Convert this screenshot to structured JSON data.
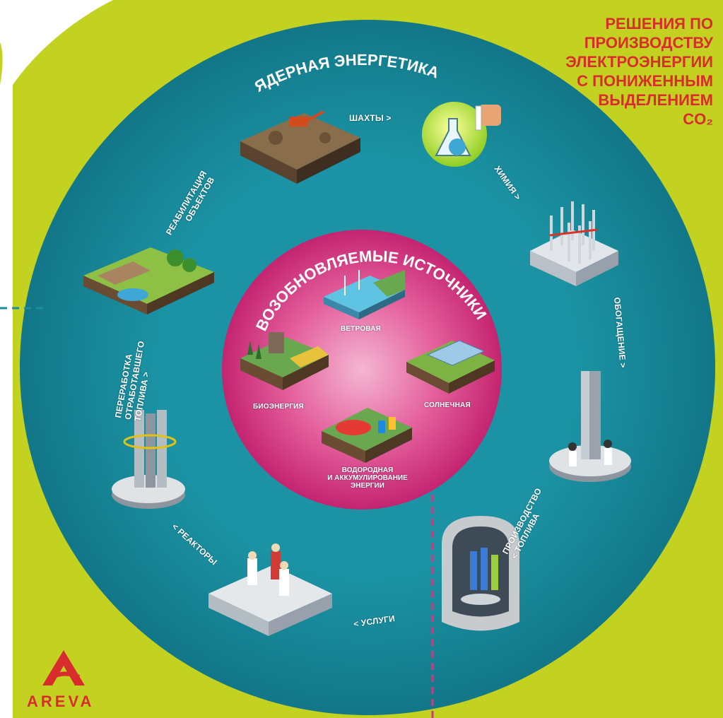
{
  "headline": {
    "lines": [
      "РЕШЕНИЯ ПО",
      "ПРОИЗВОДСТВУ",
      "ЭЛЕКТРОЭНЕРГИИ",
      "С ПОНИЖЕННЫМ",
      "ВЫДЕЛЕНИЕМ",
      "CO₂"
    ]
  },
  "outer_ring": {
    "title": "ЯДЕРНАЯ ЭНЕРГЕТИКА",
    "stages": {
      "mines": "ШАХТЫ >",
      "chemistry": "ХИМИЯ >",
      "enrichment": "ОБОГАЩЕНИЕ >",
      "fuel_production": [
        "ПРОИЗВОДСТВО",
        "< ТОПЛИВА"
      ],
      "services": "< УСЛУГИ",
      "reactors": "< РЕАКТОРЫ",
      "reprocessing": [
        "ПЕРЕРАБОТКА",
        "ОТРАБОТАВШЕГО",
        "ТОПЛИВА >"
      ],
      "rehabilitation": [
        "РЕАБИЛИТАЦИЯ",
        "ОБЪЕКТОВ"
      ]
    }
  },
  "inner_circle": {
    "title": "ВОЗОБНОВЛЯЕМЫЕ ИСТОЧНИКИ ЭНЕРГИИ",
    "wind": "ВЕТРОВАЯ",
    "bio": "БИОЭНЕРГИЯ",
    "solar": "СОЛНЕЧНАЯ",
    "hydrogen": [
      "ВОДОРОДНАЯ",
      "И АККУМУЛИРОВАНИЕ",
      "ЭНЕРГИИ"
    ]
  },
  "logo": {
    "text": "AREVA"
  },
  "colors": {
    "lime": "#c3d221",
    "teal": "#1a8d9e",
    "teal_dark": "#0e6f80",
    "magenta": "#d8357f",
    "red": "#d92c2c"
  },
  "icons": [
    "mine-icon",
    "chemistry-flask-icon",
    "enrichment-pipes-icon",
    "fuel-tower-icon",
    "reactor-vessel-icon",
    "services-people-icon",
    "reprocessing-tower-icon",
    "rehabilitation-land-icon",
    "wind-farm-icon",
    "bioenergy-plant-icon",
    "solar-farm-icon",
    "hydrogen-plant-icon"
  ]
}
